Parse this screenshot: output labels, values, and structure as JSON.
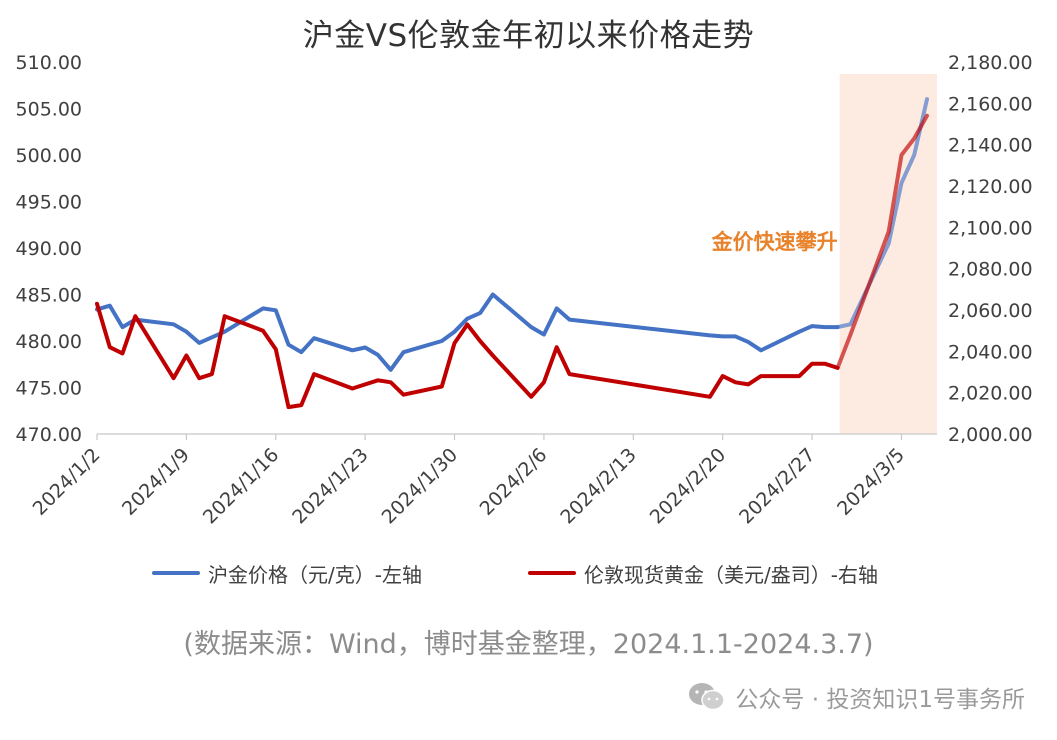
{
  "chart_data": {
    "type": "line",
    "title": "沪金VS伦敦金年初以来价格走势",
    "x": [
      "2024/1/2",
      "2024/1/3",
      "2024/1/4",
      "2024/1/5",
      "2024/1/8",
      "2024/1/9",
      "2024/1/10",
      "2024/1/11",
      "2024/1/12",
      "2024/1/15",
      "2024/1/16",
      "2024/1/17",
      "2024/1/18",
      "2024/1/19",
      "2024/1/22",
      "2024/1/23",
      "2024/1/24",
      "2024/1/25",
      "2024/1/26",
      "2024/1/29",
      "2024/1/30",
      "2024/1/31",
      "2024/2/1",
      "2024/2/2",
      "2024/2/5",
      "2024/2/6",
      "2024/2/7",
      "2024/2/8",
      "2024/2/19",
      "2024/2/20",
      "2024/2/21",
      "2024/2/22",
      "2024/2/23",
      "2024/2/26",
      "2024/2/27",
      "2024/2/28",
      "2024/2/29",
      "2024/3/1",
      "2024/3/4",
      "2024/3/5",
      "2024/3/6",
      "2024/3/7"
    ],
    "left_axis": {
      "ylim": [
        470,
        510
      ],
      "ticks": [
        "510.00",
        "505.00",
        "500.00",
        "495.00",
        "490.00",
        "485.00",
        "480.00",
        "475.00",
        "470.00"
      ]
    },
    "right_axis": {
      "ylim": [
        2000,
        2180
      ],
      "ticks": [
        "2,180.00",
        "2,160.00",
        "2,140.00",
        "2,120.00",
        "2,100.00",
        "2,080.00",
        "2,060.00",
        "2,040.00",
        "2,020.00",
        "2,000.00"
      ]
    },
    "x_tick_labels": [
      "2024/1/2",
      "2024/1/9",
      "2024/1/16",
      "2024/1/23",
      "2024/1/30",
      "2024/2/6",
      "2024/2/13",
      "2024/2/20",
      "2024/2/27",
      "2024/3/5"
    ],
    "x_range": [
      "2024/1/2",
      "2024/3/7"
    ],
    "series": [
      {
        "name": "沪金价格（元/克）-左轴",
        "axis": "left",
        "color": "#4472c4",
        "values": [
          483.4,
          483.8,
          481.5,
          482.3,
          481.8,
          481.0,
          479.8,
          480.4,
          481.0,
          483.5,
          483.3,
          479.6,
          478.8,
          480.3,
          479.0,
          479.3,
          478.5,
          476.9,
          478.8,
          480.0,
          481.0,
          482.4,
          483.0,
          485.0,
          481.5,
          480.7,
          483.5,
          482.3,
          480.6,
          480.5,
          480.5,
          479.9,
          479.0,
          481.0,
          481.6,
          481.5,
          481.5,
          481.8,
          490.5,
          497.0,
          500.0,
          506.0
        ]
      },
      {
        "name": "伦敦现货黄金（美元/盎司）-右轴",
        "axis": "right",
        "color": "#c00000",
        "values": [
          2063,
          2042,
          2039,
          2057,
          2027,
          2038,
          2027,
          2029,
          2057,
          2050,
          2041,
          2013,
          2014,
          2029,
          2022,
          2024,
          2026,
          2025,
          2019,
          2023,
          2044,
          2053,
          2045,
          2038,
          2018,
          2025,
          2042,
          2029,
          2018,
          2028,
          2025,
          2024,
          2028,
          2028,
          2034,
          2034,
          2032,
          2048,
          2098,
          2135,
          2143,
          2154
        ]
      }
    ],
    "highlight": {
      "from": "2024/2/29",
      "to": "2024/3/7",
      "color": "#fdebe1"
    },
    "annotation": "金价快速攀升",
    "grid": false,
    "legend_position": "bottom"
  },
  "source_note": "(数据来源：Wind，博时基金整理，2024.1.1-2024.3.7)",
  "footer": {
    "icon": "wechat-icon",
    "text": "公众号 · 投资知识1号事务所"
  }
}
